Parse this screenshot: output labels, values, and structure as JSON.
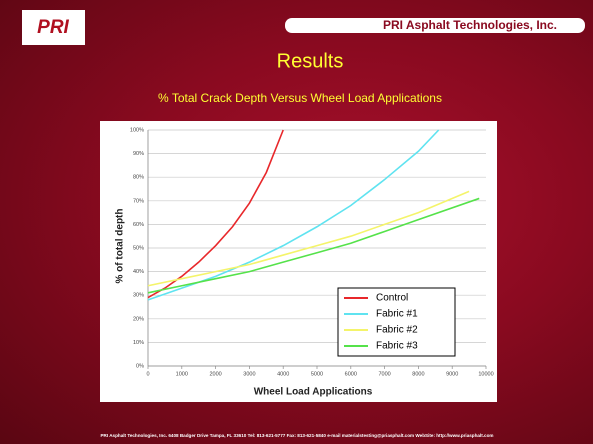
{
  "slide": {
    "logo": "PRI",
    "header": "PRI Asphalt Technologies, Inc.",
    "title": "Results",
    "footer": "PRI Asphalt Technologies, Inc.  6408 Badger Drive  Tampa, FL 33610  Tel: 813-621-5777  Fax: 813-621-5840  e-mail materialstesting@priasphalt.com  WebSite: http://www.priasphalt.com"
  },
  "chart_data": {
    "type": "line",
    "title": "% Total Crack Depth Versus Wheel Load Applications",
    "x_label": "Wheel Load Applications",
    "y_label": "% of total depth",
    "xlim": [
      0,
      10000
    ],
    "xticks": [
      0,
      1000,
      2000,
      3000,
      4000,
      5000,
      6000,
      7000,
      8000,
      9000,
      10000
    ],
    "ylim": [
      0,
      100
    ],
    "yticks": [
      {
        "value": 0,
        "label": "0%"
      },
      {
        "value": 10,
        "label": "10%"
      },
      {
        "value": 20,
        "label": "20%"
      },
      {
        "value": 30,
        "label": "30%"
      },
      {
        "value": 40,
        "label": "40%"
      },
      {
        "value": 50,
        "label": "50%"
      },
      {
        "value": 60,
        "label": "60%"
      },
      {
        "value": 70,
        "label": "70%"
      },
      {
        "value": 80,
        "label": "80%"
      },
      {
        "value": 90,
        "label": "90%"
      },
      {
        "value": 100,
        "label": "100%"
      }
    ],
    "grid": true,
    "legend": "lower right",
    "series": [
      {
        "name": "Control",
        "color": "#e8282b",
        "x": [
          0,
          500,
          1000,
          1500,
          2000,
          2500,
          3000,
          3500,
          4000
        ],
        "values": [
          29,
          33,
          38,
          44,
          51,
          59,
          69,
          82,
          100
        ]
      },
      {
        "name": "Fabric #1",
        "color": "#5fe3f0",
        "x": [
          0,
          1000,
          2000,
          3000,
          4000,
          5000,
          6000,
          7000,
          8000,
          8600
        ],
        "values": [
          28,
          33,
          38,
          44,
          51,
          59,
          68,
          79,
          91,
          100
        ]
      },
      {
        "name": "Fabric #2",
        "color": "#f4f46a",
        "x": [
          0,
          1000,
          2000,
          3000,
          4000,
          5000,
          6000,
          7000,
          8000,
          9500
        ],
        "values": [
          34,
          37,
          40,
          43,
          47,
          51,
          55,
          60,
          65,
          74
        ]
      },
      {
        "name": "Fabric #3",
        "color": "#55e24a",
        "x": [
          0,
          1000,
          2000,
          3000,
          4000,
          5000,
          6000,
          7000,
          8000,
          9800
        ],
        "values": [
          31,
          34,
          37,
          40,
          44,
          48,
          52,
          57,
          62,
          71
        ]
      }
    ]
  }
}
